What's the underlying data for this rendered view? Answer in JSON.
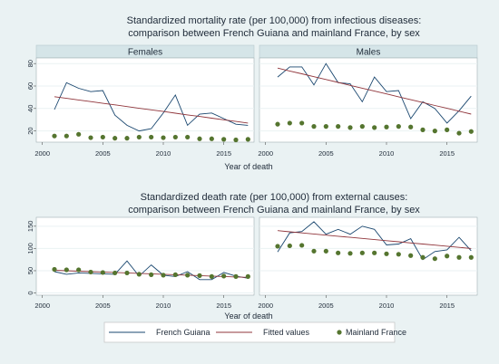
{
  "colors": {
    "background": "#eaf2f3",
    "panel_header": "#d5e5e8",
    "grid": "#ffffff",
    "french_guiana": "#1a476f",
    "fitted": "#90353b",
    "mainland": "#55752f"
  },
  "legend": {
    "french_guiana": "French Guiana",
    "fitted": "Fitted values",
    "mainland": "Mainland France"
  },
  "chart_data": [
    {
      "type": "line",
      "title": "Standardized mortality rate (per 100,000) from infectious diseases:",
      "subtitle": "comparison between French Guiana and mainland France, by sex",
      "xlabel": "Year of death",
      "ylabel": "",
      "xticks": [
        2000,
        2005,
        2010,
        2015
      ],
      "yticks": [
        20,
        40,
        60,
        80
      ],
      "xlim": [
        1999.5,
        2017.5
      ],
      "ylim": [
        10,
        85
      ],
      "panels": [
        {
          "label": "Females",
          "x": [
            2001,
            2002,
            2003,
            2004,
            2005,
            2006,
            2007,
            2008,
            2009,
            2010,
            2011,
            2012,
            2013,
            2014,
            2015,
            2016,
            2017
          ],
          "series": [
            {
              "name": "French Guiana",
              "kind": "line",
              "values": [
                39,
                63,
                58,
                55,
                56,
                34,
                25,
                20,
                22,
                36,
                52,
                25,
                35,
                36,
                31,
                26,
                25
              ]
            },
            {
              "name": "Fitted values",
              "kind": "line",
              "values": [
                50.5,
                49.0,
                47.6,
                46.1,
                44.6,
                43.2,
                41.7,
                40.2,
                38.8,
                37.3,
                35.8,
                34.3,
                32.9,
                31.4,
                29.9,
                28.5,
                27.0
              ]
            },
            {
              "name": "Mainland France",
              "kind": "scatter",
              "values": [
                15.5,
                15.5,
                17,
                14,
                14.5,
                13.5,
                13.5,
                14.5,
                14.5,
                14,
                14.5,
                14.5,
                13,
                13,
                12.5,
                12,
                12.5
              ]
            }
          ]
        },
        {
          "label": "Males",
          "x": [
            2001,
            2002,
            2003,
            2004,
            2005,
            2006,
            2007,
            2008,
            2009,
            2010,
            2011,
            2012,
            2013,
            2014,
            2015,
            2016,
            2017
          ],
          "series": [
            {
              "name": "French Guiana",
              "kind": "line",
              "values": [
                68,
                77,
                77,
                61,
                80,
                63,
                62,
                46,
                68,
                55,
                56,
                31,
                46,
                40,
                27,
                38,
                51
              ]
            },
            {
              "name": "Fitted values",
              "kind": "line",
              "values": [
                76,
                73.4,
                70.9,
                68.3,
                65.8,
                63.2,
                60.6,
                58.1,
                55.5,
                53.0,
                50.4,
                47.8,
                45.3,
                42.7,
                40.2,
                37.6,
                35
              ]
            },
            {
              "name": "Mainland France",
              "kind": "scatter",
              "values": [
                26,
                27,
                27,
                24,
                24,
                24,
                23,
                24,
                23,
                23.5,
                24,
                23.5,
                21,
                20,
                21,
                18,
                19.5
              ]
            }
          ]
        }
      ]
    },
    {
      "type": "line",
      "title": "Standardized death rate (per 100,000) from external causes:",
      "subtitle": "comparison between French Guiana and mainland France, by sex",
      "xlabel": "Year of death",
      "ylabel": "",
      "xticks": [
        2000,
        2005,
        2010,
        2015
      ],
      "yticks": [
        0,
        50,
        100,
        150
      ],
      "xlim": [
        1999.5,
        2017.5
      ],
      "ylim": [
        -5,
        170
      ],
      "panels": [
        {
          "label": "",
          "x": [
            2001,
            2002,
            2003,
            2004,
            2005,
            2006,
            2007,
            2008,
            2009,
            2010,
            2011,
            2012,
            2013,
            2014,
            2015,
            2016,
            2017
          ],
          "series": [
            {
              "name": "French Guiana",
              "kind": "line",
              "values": [
                48,
                42,
                45,
                44,
                43,
                42,
                72,
                38,
                63,
                40,
                37,
                48,
                30,
                30,
                46,
                38,
                33
              ]
            },
            {
              "name": "Fitted values",
              "kind": "line",
              "values": [
                51,
                50.0,
                49.0,
                48.0,
                47.0,
                46.0,
                45.0,
                44.0,
                43.0,
                42.0,
                41.0,
                40.0,
                39.0,
                38.0,
                37.0,
                36.0,
                35
              ]
            },
            {
              "name": "Mainland France",
              "kind": "scatter",
              "values": [
                53,
                52,
                52,
                47,
                46,
                45,
                45,
                42,
                41,
                40,
                41,
                40,
                39,
                37,
                38,
                37,
                37
              ]
            }
          ]
        },
        {
          "label": "",
          "x": [
            2001,
            2002,
            2003,
            2004,
            2005,
            2006,
            2007,
            2008,
            2009,
            2010,
            2011,
            2012,
            2013,
            2014,
            2015,
            2016,
            2017
          ],
          "series": [
            {
              "name": "French Guiana",
              "kind": "line",
              "values": [
                92,
                135,
                138,
                160,
                132,
                143,
                132,
                150,
                143,
                108,
                110,
                122,
                75,
                93,
                97,
                125,
                95
              ]
            },
            {
              "name": "Fitted values",
              "kind": "line",
              "values": [
                140,
                137.5,
                135.0,
                132.5,
                130.0,
                127.5,
                125.0,
                122.5,
                120.0,
                117.5,
                115.0,
                112.5,
                110.0,
                107.5,
                105.0,
                102.5,
                100
              ]
            },
            {
              "name": "Mainland France",
              "kind": "scatter",
              "values": [
                105,
                106,
                107,
                94,
                94,
                90,
                89,
                90,
                90,
                88,
                87,
                84,
                80,
                77,
                83,
                80,
                80
              ]
            }
          ]
        }
      ]
    }
  ]
}
